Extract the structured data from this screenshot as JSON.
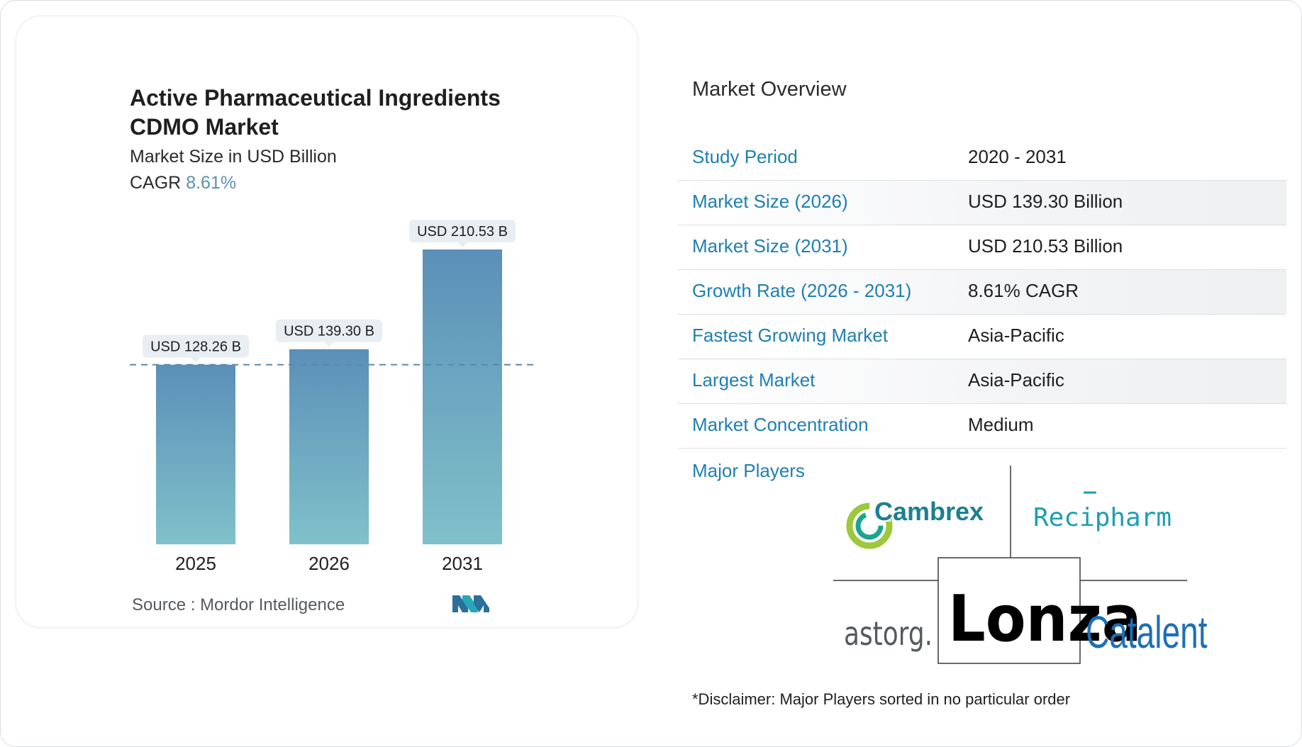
{
  "chart_data": {
    "type": "bar",
    "title": "Active Pharmaceutical Ingredients CDMO Market",
    "subtitle": "Market Size in USD Billion",
    "cagr_label": "CAGR",
    "cagr_value": "8.61%",
    "categories": [
      "2025",
      "2026",
      "2031"
    ],
    "values": [
      128.26,
      139.3,
      210.53
    ],
    "data_labels": [
      "USD 128.26 B",
      "USD 139.30 B",
      "USD 210.53 B"
    ],
    "reference_line": 128.26,
    "ylim": [
      0,
      210.53
    ],
    "colors": {
      "bar_top": "#5b8fb8",
      "bar_bottom": "#80c1ca",
      "dashed_line": "#5b87ad",
      "label_bg": "#e8eef2"
    },
    "source_label": "Source :",
    "source": "Mordor Intelligence"
  },
  "overview": {
    "title": "Market Overview",
    "rows": [
      {
        "label": "Study Period",
        "value": "2020 - 2031"
      },
      {
        "label": "Market Size (2026)",
        "value": "USD 139.30 Billion"
      },
      {
        "label": "Market Size (2031)",
        "value": "USD 210.53 Billion"
      },
      {
        "label": "Growth Rate (2026 - 2031)",
        "value": "8.61% CAGR"
      },
      {
        "label": "Fastest Growing Market",
        "value": "Asia-Pacific"
      },
      {
        "label": "Largest Market",
        "value": "Asia-Pacific"
      },
      {
        "label": "Market Concentration",
        "value": "Medium"
      }
    ]
  },
  "players": {
    "label": "Major Players",
    "logos": [
      "Cambrex",
      "Recipharm",
      "astorg.",
      "Lonza",
      "Catalent"
    ],
    "disclaimer": "*Disclaimer: Major Players sorted in no particular order"
  }
}
